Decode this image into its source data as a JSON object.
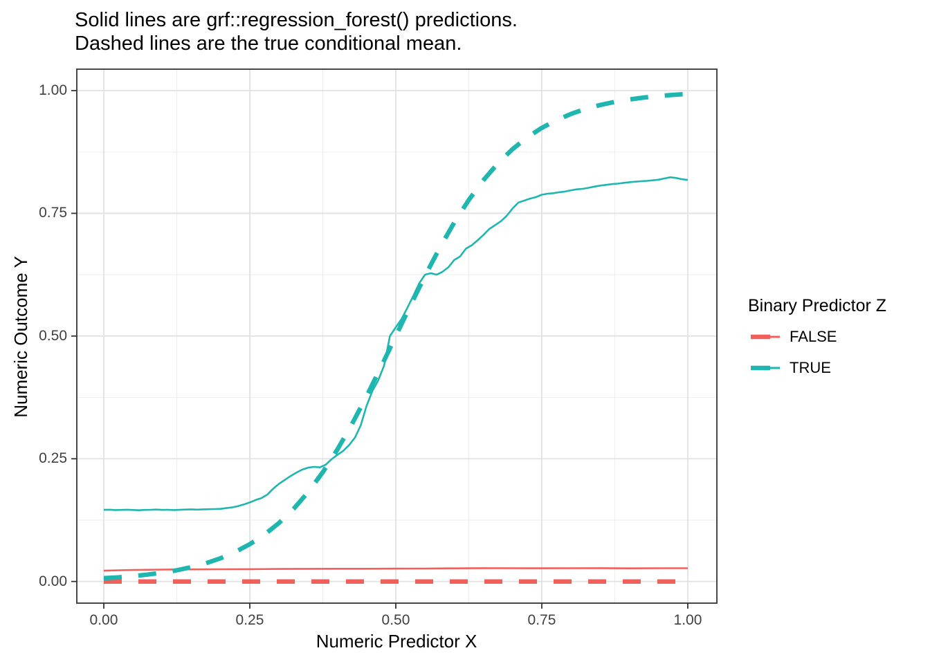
{
  "chart_data": {
    "type": "line",
    "title": "Solid lines are grf::regression_forest() predictions.\nDashed lines are the true conditional mean.",
    "title_lines": [
      "Solid lines are grf::regression_forest() predictions.",
      "Dashed lines are the true conditional mean."
    ],
    "xlabel": "Numeric Predictor X",
    "ylabel": "Numeric Outcome Y",
    "x_axis": {
      "range": [
        -0.0462,
        1.0498
      ],
      "ticks": [
        {
          "v": 0.0,
          "label": "0.00"
        },
        {
          "v": 0.25,
          "label": "0.25"
        },
        {
          "v": 0.5,
          "label": "0.50"
        },
        {
          "v": 0.75,
          "label": "0.75"
        },
        {
          "v": 1.0,
          "label": "1.00"
        }
      ],
      "minor": [
        0.125,
        0.375,
        0.625,
        0.875
      ]
    },
    "y_axis": {
      "range": [
        -0.0441,
        1.0437
      ],
      "ticks": [
        {
          "v": 0.0,
          "label": "0.00"
        },
        {
          "v": 0.25,
          "label": "0.25"
        },
        {
          "v": 0.5,
          "label": "0.50"
        },
        {
          "v": 0.75,
          "label": "0.75"
        },
        {
          "v": 1.0,
          "label": "1.00"
        }
      ],
      "minor": [
        0.125,
        0.375,
        0.625,
        0.875
      ]
    },
    "grid": {
      "major_color": "#E2E2E2",
      "minor_color": "#EDEDED",
      "on": true
    },
    "panel": {
      "background": "#FFFFFF",
      "border_color": "#333333"
    },
    "colors": {
      "false_group": "#F15F5B",
      "true_group": "#1FB6B0"
    },
    "legend": {
      "title": "Binary Predictor Z",
      "position": "right",
      "entries": [
        {
          "label": "FALSE",
          "color": "#F15F5B"
        },
        {
          "label": "TRUE",
          "color": "#1FB6B0"
        }
      ]
    },
    "series": [
      {
        "name": "FALSE forest prediction",
        "group": "FALSE",
        "linetype": "solid",
        "color": "#F15F5B",
        "width": 2.6,
        "x_start": 0,
        "x_step": 0.05,
        "y": [
          0.022,
          0.0235,
          0.0242,
          0.0246,
          0.025,
          0.0251,
          0.0255,
          0.0258,
          0.026,
          0.026,
          0.0262,
          0.0264,
          0.0268,
          0.0272,
          0.027,
          0.0269,
          0.027,
          0.0272,
          0.0268,
          0.027,
          0.027
        ]
      },
      {
        "name": "TRUE forest prediction",
        "group": "TRUE",
        "linetype": "solid",
        "color": "#1FB6B0",
        "width": 2.6,
        "x_start": 0,
        "x_step": 0.01,
        "y": [
          0.146,
          0.1462,
          0.1455,
          0.1458,
          0.1463,
          0.1457,
          0.1452,
          0.1458,
          0.146,
          0.1465,
          0.1459,
          0.1461,
          0.1455,
          0.146,
          0.1466,
          0.147,
          0.1464,
          0.1469,
          0.1472,
          0.1476,
          0.148,
          0.1495,
          0.151,
          0.1535,
          0.157,
          0.161,
          0.166,
          0.17,
          0.177,
          0.189,
          0.199,
          0.207,
          0.215,
          0.222,
          0.228,
          0.232,
          0.2335,
          0.2325,
          0.238,
          0.249,
          0.258,
          0.266,
          0.278,
          0.293,
          0.318,
          0.358,
          0.388,
          0.41,
          0.44,
          0.5,
          0.518,
          0.535,
          0.558,
          0.582,
          0.607,
          0.625,
          0.628,
          0.625,
          0.631,
          0.64,
          0.655,
          0.662,
          0.678,
          0.685,
          0.695,
          0.706,
          0.718,
          0.726,
          0.734,
          0.745,
          0.76,
          0.772,
          0.776,
          0.78,
          0.783,
          0.788,
          0.79,
          0.791,
          0.793,
          0.7945,
          0.797,
          0.799,
          0.8,
          0.802,
          0.8045,
          0.8065,
          0.808,
          0.8095,
          0.8105,
          0.812,
          0.8135,
          0.8145,
          0.8155,
          0.8162,
          0.8172,
          0.8185,
          0.821,
          0.8235,
          0.822,
          0.8195,
          0.818
        ]
      },
      {
        "name": "FALSE true conditional mean",
        "group": "FALSE",
        "linetype": "dashed",
        "color": "#F15F5B",
        "width": 6.5,
        "x": [
          0,
          1
        ],
        "y": [
          0,
          0
        ]
      },
      {
        "name": "TRUE true conditional mean",
        "group": "TRUE",
        "linetype": "dashed",
        "color": "#1FB6B0",
        "width": 6.5,
        "x_start": 0,
        "x_step": 0.025,
        "y": [
          0.0067,
          0.0085,
          0.011,
          0.0141,
          0.018,
          0.0229,
          0.0293,
          0.0372,
          0.0474,
          0.0601,
          0.0759,
          0.0953,
          0.1192,
          0.148,
          0.1824,
          0.2227,
          0.2689,
          0.3208,
          0.3775,
          0.4378,
          0.5,
          0.5622,
          0.6225,
          0.6792,
          0.7311,
          0.7773,
          0.8176,
          0.852,
          0.8808,
          0.9047,
          0.9241,
          0.9399,
          0.9526,
          0.9628,
          0.9707,
          0.977,
          0.982,
          0.9859,
          0.989,
          0.9914,
          0.9933
        ]
      }
    ]
  }
}
